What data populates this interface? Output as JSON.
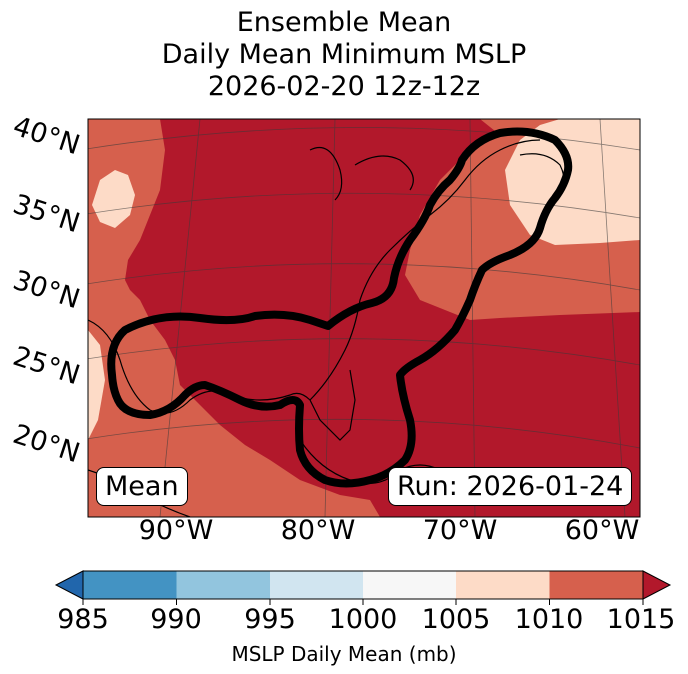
{
  "title": {
    "line1": "Ensemble Mean",
    "line2": "Daily Mean Minimum MSLP",
    "line3": "2026-02-20 12z-12z"
  },
  "map": {
    "lat_labels": [
      "40°N",
      "35°N",
      "30°N",
      "25°N",
      "20°N"
    ],
    "lon_labels": [
      "90°W",
      "80°W",
      "70°W",
      "60°W"
    ],
    "mean_box": "Mean",
    "run_box": "Run: 2026-01-24",
    "region_colors": {
      "outer": "#d6604d",
      "core": "#b2182b",
      "high": "#fddbc7",
      "contour": "#000000"
    }
  },
  "colorbar": {
    "label": "MSLP Daily Mean (mb)",
    "ticks": [
      "985",
      "990",
      "995",
      "1000",
      "1005",
      "1010",
      "1015"
    ],
    "colors": [
      "#2166ac",
      "#4393c3",
      "#92c5de",
      "#d1e5f0",
      "#f7f7f7",
      "#fddbc7",
      "#d6604d",
      "#b2182b"
    ]
  }
}
